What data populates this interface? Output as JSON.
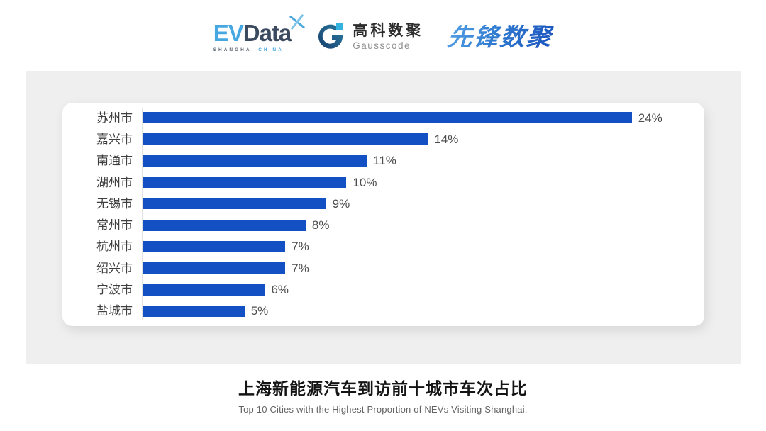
{
  "header": {
    "evdata": {
      "ev": "EV",
      "data": "Data",
      "sub1": "SHANGHAI",
      "sub2": "CHINA"
    },
    "gausscode": {
      "cn": "高科数聚",
      "en": "Gausscode"
    },
    "xianfeng": {
      "text": "先锋数聚"
    }
  },
  "chart_data": {
    "type": "bar",
    "orientation": "horizontal",
    "title": "上海新能源汽车到访前十城市车次占比",
    "subtitle": "Top 10 Cities with the Highest Proportion of  NEVs Visiting Shanghai.",
    "categories": [
      "苏州市",
      "嘉兴市",
      "南通市",
      "湖州市",
      "无锡市",
      "常州市",
      "杭州市",
      "绍兴市",
      "宁波市",
      "盐城市"
    ],
    "values": [
      24,
      14,
      11,
      10,
      9,
      8,
      7,
      7,
      6,
      5
    ],
    "value_labels": [
      "24%",
      "14%",
      "11%",
      "10%",
      "9%",
      "8%",
      "7%",
      "7%",
      "6%",
      "5%"
    ],
    "axis_max": 27,
    "bar_color": "#1250c4",
    "grid": false,
    "legend": "none",
    "value_label_position": "end-of-bar"
  },
  "colors": {
    "panel_bg": "#efefef",
    "card_bg": "#ffffff",
    "axis_line": "#e2e2e2",
    "label_text": "#3f3f3f",
    "evdata_light_blue": "#47a7e0",
    "evdata_navy": "#3c4a60",
    "gauss_dark_blue": "#1c4e7e",
    "gauss_teal": "#2a7ba0",
    "gauss_light_blue": "#35b3e0",
    "xianfeng_blue": "#2f7bd0"
  }
}
